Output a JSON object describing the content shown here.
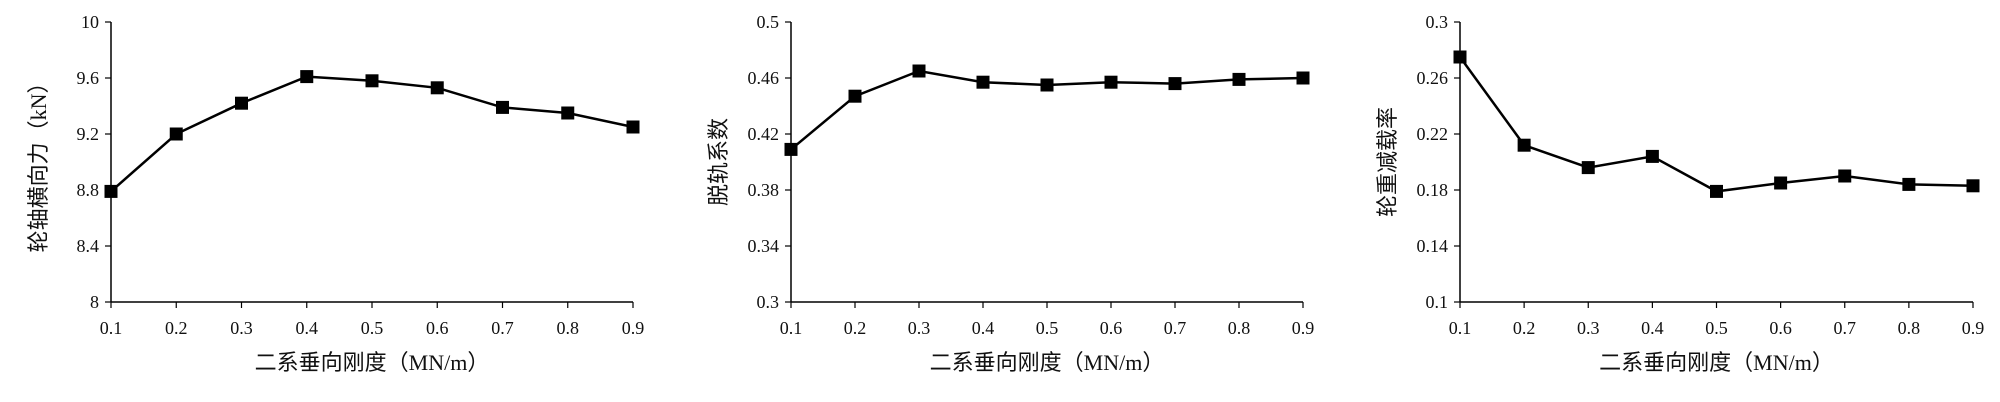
{
  "chart_data": [
    {
      "type": "line",
      "xlabel": "二系垂向刚度（MN/m）",
      "ylabel": "轮轴横向力（kN）",
      "x": [
        0.1,
        0.2,
        0.3,
        0.4,
        0.5,
        0.6,
        0.7,
        0.8,
        0.9
      ],
      "x_tick_labels": [
        "0.1",
        "0.2",
        "0.3",
        "0.4",
        "0.5",
        "0.6",
        "0.7",
        "0.8",
        "0.9"
      ],
      "y": [
        8.79,
        9.2,
        9.42,
        9.61,
        9.58,
        9.53,
        9.39,
        9.35,
        9.25
      ],
      "ylim": [
        8,
        10
      ],
      "y_ticks": [
        8,
        8.4,
        8.8,
        9.2,
        9.6,
        10
      ],
      "y_tick_labels": [
        "8",
        "8.4",
        "8.8",
        "9.2",
        "9.6",
        "10"
      ],
      "marker": "square",
      "line_color": "#000000",
      "grid": false
    },
    {
      "type": "line",
      "xlabel": "二系垂向刚度（MN/m）",
      "ylabel": "脱轨系数",
      "x": [
        0.1,
        0.2,
        0.3,
        0.4,
        0.5,
        0.6,
        0.7,
        0.8,
        0.9
      ],
      "x_tick_labels": [
        "0.1",
        "0.2",
        "0.3",
        "0.4",
        "0.5",
        "0.6",
        "0.7",
        "0.8",
        "0.9"
      ],
      "y": [
        0.409,
        0.447,
        0.465,
        0.457,
        0.455,
        0.457,
        0.456,
        0.459,
        0.46
      ],
      "ylim": [
        0.3,
        0.5
      ],
      "y_ticks": [
        0.3,
        0.34,
        0.38,
        0.42,
        0.46,
        0.5
      ],
      "y_tick_labels": [
        "0.3",
        "0.34",
        "0.38",
        "0.42",
        "0.46",
        "0.5"
      ],
      "marker": "square",
      "line_color": "#000000",
      "grid": false
    },
    {
      "type": "line",
      "xlabel": "二系垂向刚度（MN/m）",
      "ylabel": "轮重减载率",
      "x": [
        0.1,
        0.2,
        0.3,
        0.4,
        0.5,
        0.6,
        0.7,
        0.8,
        0.9
      ],
      "x_tick_labels": [
        "0.1",
        "0.2",
        "0.3",
        "0.4",
        "0.5",
        "0.6",
        "0.7",
        "0.8",
        "0.9"
      ],
      "y": [
        0.275,
        0.212,
        0.196,
        0.204,
        0.179,
        0.185,
        0.19,
        0.184,
        0.183
      ],
      "ylim": [
        0.1,
        0.3
      ],
      "y_ticks": [
        0.1,
        0.14,
        0.18,
        0.22,
        0.26,
        0.3
      ],
      "y_tick_labels": [
        "0.1",
        "0.14",
        "0.18",
        "0.22",
        "0.26",
        "0.3"
      ],
      "marker": "square",
      "line_color": "#000000",
      "grid": false
    }
  ]
}
